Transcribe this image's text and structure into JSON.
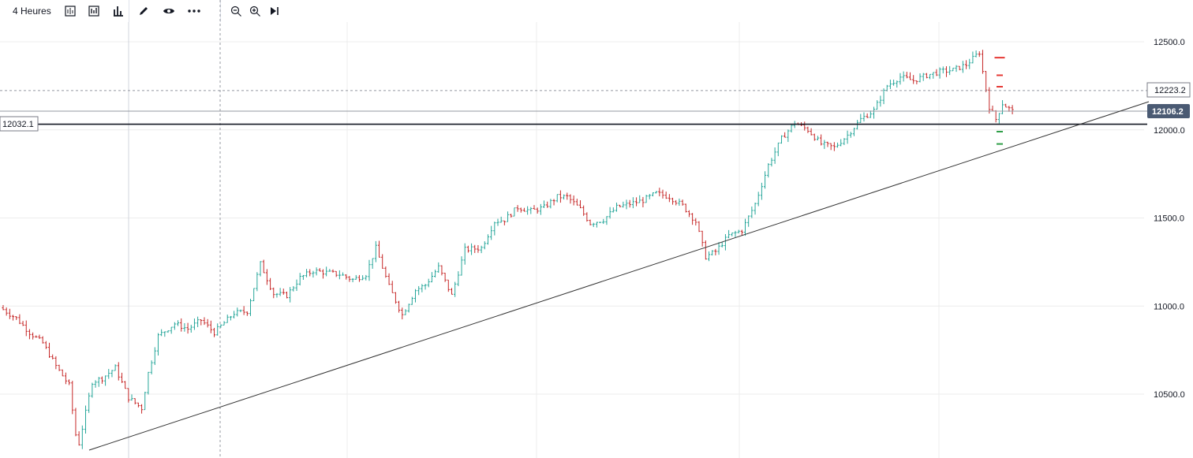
{
  "toolbar": {
    "timeframe": "4 Heures",
    "icons": [
      "candle-style-icon",
      "indicators-icon",
      "bar-chart-icon",
      "pencil-icon",
      "eye-icon",
      "more-icon",
      "zoom-out-icon",
      "zoom-in-icon",
      "scroll-to-end-icon"
    ]
  },
  "colors": {
    "up": "#26a69a",
    "down": "#c62828",
    "axis_badge": "#4a5a73",
    "trendline": "#333333",
    "grid": "#ececec",
    "level_up": "#2e9e47",
    "level_down": "#e53935"
  },
  "chart_data": {
    "type": "bar",
    "title": "",
    "xlabel": "",
    "ylabel": "",
    "ylim": [
      10200,
      12590
    ],
    "y_ticks": [
      "12500.0",
      "12000.0",
      "11500.0",
      "11000.0",
      "10500.0"
    ],
    "price_labels": {
      "horizontal_line": "12223.2",
      "last_price": "12106.2",
      "support": "12032.1"
    },
    "horizontal_levels": [
      12223.2,
      12106.2,
      12032.1
    ],
    "trendline": {
      "from": [
        0,
        10195
      ],
      "to": [
        300,
        12160
      ]
    },
    "target_marks": [
      {
        "value": 12410,
        "color": "down"
      },
      {
        "value": 12310,
        "color": "down"
      },
      {
        "value": 12245,
        "color": "down"
      },
      {
        "value": 11990,
        "color": "up"
      },
      {
        "value": 11920,
        "color": "up"
      }
    ],
    "anchors": [
      [
        0,
        10980
      ],
      [
        4,
        10930
      ],
      [
        8,
        10850
      ],
      [
        12,
        10790
      ],
      [
        16,
        10660
      ],
      [
        20,
        10550
      ],
      [
        22,
        10270
      ],
      [
        23,
        10220
      ],
      [
        27,
        10570
      ],
      [
        30,
        10590
      ],
      [
        34,
        10650
      ],
      [
        38,
        10480
      ],
      [
        42,
        10420
      ],
      [
        44,
        10620
      ],
      [
        47,
        10830
      ],
      [
        52,
        10900
      ],
      [
        56,
        10870
      ],
      [
        60,
        10920
      ],
      [
        64,
        10850
      ],
      [
        70,
        10960
      ],
      [
        74,
        10970
      ],
      [
        78,
        11240
      ],
      [
        82,
        11070
      ],
      [
        86,
        11060
      ],
      [
        90,
        11160
      ],
      [
        94,
        11200
      ],
      [
        98,
        11190
      ],
      [
        102,
        11180
      ],
      [
        106,
        11150
      ],
      [
        110,
        11180
      ],
      [
        113,
        11330
      ],
      [
        117,
        11110
      ],
      [
        121,
        10950
      ],
      [
        125,
        11090
      ],
      [
        128,
        11120
      ],
      [
        132,
        11220
      ],
      [
        136,
        11060
      ],
      [
        140,
        11320
      ],
      [
        145,
        11330
      ],
      [
        149,
        11480
      ],
      [
        152,
        11490
      ],
      [
        156,
        11560
      ],
      [
        160,
        11540
      ],
      [
        164,
        11560
      ],
      [
        168,
        11620
      ],
      [
        171,
        11620
      ],
      [
        175,
        11550
      ],
      [
        178,
        11470
      ],
      [
        182,
        11490
      ],
      [
        186,
        11560
      ],
      [
        190,
        11580
      ],
      [
        194,
        11600
      ],
      [
        198,
        11640
      ],
      [
        202,
        11620
      ],
      [
        206,
        11570
      ],
      [
        210,
        11480
      ],
      [
        213,
        11280
      ],
      [
        216,
        11310
      ],
      [
        220,
        11400
      ],
      [
        224,
        11430
      ],
      [
        228,
        11580
      ],
      [
        232,
        11800
      ],
      [
        236,
        11950
      ],
      [
        240,
        12040
      ],
      [
        244,
        12000
      ],
      [
        248,
        11920
      ],
      [
        252,
        11900
      ],
      [
        256,
        11970
      ],
      [
        260,
        12060
      ],
      [
        264,
        12110
      ],
      [
        268,
        12250
      ],
      [
        272,
        12300
      ],
      [
        276,
        12280
      ],
      [
        280,
        12310
      ],
      [
        284,
        12330
      ],
      [
        288,
        12340
      ],
      [
        292,
        12370
      ],
      [
        296,
        12440
      ],
      [
        297,
        12330
      ],
      [
        299,
        12130
      ],
      [
        301,
        12060
      ],
      [
        303,
        12150
      ],
      [
        305,
        12120
      ],
      [
        306,
        12106
      ]
    ]
  }
}
